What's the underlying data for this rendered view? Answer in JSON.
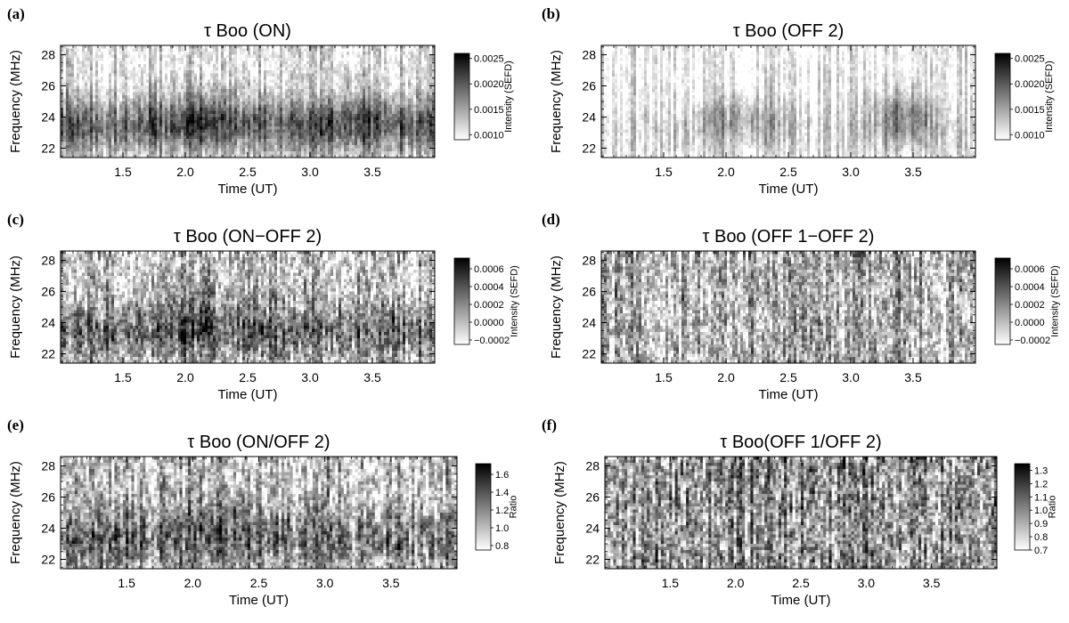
{
  "chart_data": [
    {
      "type": "heatmap",
      "panel_label": "(a)",
      "title": "τ Boo (ON)",
      "xlabel": "Time (UT)",
      "ylabel": "Frequency (MHz)",
      "xlim": [
        1.0,
        4.0
      ],
      "ylim": [
        21.4,
        28.6
      ],
      "xticks": [
        1.5,
        2.0,
        2.5,
        3.0,
        3.5
      ],
      "xticklabels": [
        "1.5",
        "2.0",
        "2.5",
        "3.0",
        "3.5"
      ],
      "yticks": [
        22,
        24,
        26,
        28
      ],
      "yticklabels": [
        "22",
        "24",
        "26",
        "28"
      ],
      "colorbar": {
        "label": "Intensity (SEFD)",
        "range": [
          0.0009,
          0.0026
        ],
        "ticks": [
          0.001,
          0.0015,
          0.002,
          0.0025
        ],
        "ticklabels": [
          "0.0010",
          "0.0015",
          "0.0020",
          "0.0025"
        ]
      },
      "colormap": "gray_reversed",
      "pattern": "on"
    },
    {
      "type": "heatmap",
      "panel_label": "(b)",
      "title": "τ Boo (OFF 2)",
      "xlabel": "Time (UT)",
      "ylabel": "Frequency (MHz)",
      "xlim": [
        1.0,
        4.0
      ],
      "ylim": [
        21.4,
        28.6
      ],
      "xticks": [
        1.5,
        2.0,
        2.5,
        3.0,
        3.5
      ],
      "xticklabels": [
        "1.5",
        "2.0",
        "2.5",
        "3.0",
        "3.5"
      ],
      "yticks": [
        22,
        24,
        26,
        28
      ],
      "yticklabels": [
        "22",
        "24",
        "26",
        "28"
      ],
      "colorbar": {
        "label": "Intensity (SEFD)",
        "range": [
          0.0009,
          0.0026
        ],
        "ticks": [
          0.001,
          0.0015,
          0.002,
          0.0025
        ],
        "ticklabels": [
          "0.0010",
          "0.0015",
          "0.0020",
          "0.0025"
        ]
      },
      "colormap": "gray_reversed",
      "pattern": "off"
    },
    {
      "type": "heatmap",
      "panel_label": "(c)",
      "title": "τ Boo (ON−OFF 2)",
      "xlabel": "Time (UT)",
      "ylabel": "Frequency (MHz)",
      "xlim": [
        1.0,
        4.0
      ],
      "ylim": [
        21.4,
        28.6
      ],
      "xticks": [
        1.5,
        2.0,
        2.5,
        3.0,
        3.5
      ],
      "xticklabels": [
        "1.5",
        "2.0",
        "2.5",
        "3.0",
        "3.5"
      ],
      "yticks": [
        22,
        24,
        26,
        28
      ],
      "yticklabels": [
        "22",
        "24",
        "26",
        "28"
      ],
      "colorbar": {
        "label": "Intensity (SEFD)",
        "range": [
          -0.00025,
          0.00072
        ],
        "ticks": [
          -0.0002,
          0.0,
          0.0002,
          0.0004,
          0.0006
        ],
        "ticklabels": [
          "−0.0002",
          "0.0000",
          "0.0002",
          "0.0004",
          "0.0006"
        ]
      },
      "colormap": "gray_reversed",
      "pattern": "diff"
    },
    {
      "type": "heatmap",
      "panel_label": "(d)",
      "title": "τ Boo (OFF 1−OFF 2)",
      "xlabel": "Time (UT)",
      "ylabel": "Frequency (MHz)",
      "xlim": [
        1.0,
        4.0
      ],
      "ylim": [
        21.4,
        28.6
      ],
      "xticks": [
        1.5,
        2.0,
        2.5,
        3.0,
        3.5
      ],
      "xticklabels": [
        "1.5",
        "2.0",
        "2.5",
        "3.0",
        "3.5"
      ],
      "yticks": [
        22,
        24,
        26,
        28
      ],
      "yticklabels": [
        "22",
        "24",
        "26",
        "28"
      ],
      "colorbar": {
        "label": "Intensity (SEFD)",
        "range": [
          -0.00025,
          0.00072
        ],
        "ticks": [
          -0.0002,
          0.0,
          0.0002,
          0.0004,
          0.0006
        ],
        "ticklabels": [
          "−0.0002",
          "0.0000",
          "0.0002",
          "0.0004",
          "0.0006"
        ]
      },
      "colormap": "gray_reversed",
      "pattern": "noise"
    },
    {
      "type": "heatmap",
      "panel_label": "(e)",
      "title": "τ Boo (ON/OFF 2)",
      "xlabel": "Time (UT)",
      "ylabel": "Frequency (MHz)",
      "xlim": [
        1.0,
        4.0
      ],
      "ylim": [
        21.4,
        28.6
      ],
      "xticks": [
        1.5,
        2.0,
        2.5,
        3.0,
        3.5
      ],
      "xticklabels": [
        "1.5",
        "2.0",
        "2.5",
        "3.0",
        "3.5"
      ],
      "yticks": [
        22,
        24,
        26,
        28
      ],
      "yticklabels": [
        "22",
        "24",
        "26",
        "28"
      ],
      "colorbar": {
        "label": "Ratio",
        "range": [
          0.75,
          1.72
        ],
        "ticks": [
          0.8,
          1.0,
          1.2,
          1.4,
          1.6
        ],
        "ticklabels": [
          "0.8",
          "1.0",
          "1.2",
          "1.4",
          "1.6"
        ]
      },
      "colormap": "gray_reversed",
      "pattern": "ratio"
    },
    {
      "type": "heatmap",
      "panel_label": "(f)",
      "title": "τ Boo(OFF 1/OFF 2)",
      "xlabel": "Time (UT)",
      "ylabel": "Frequency (MHz)",
      "xlim": [
        1.0,
        4.0
      ],
      "ylim": [
        21.4,
        28.6
      ],
      "xticks": [
        1.5,
        2.0,
        2.5,
        3.0,
        3.5
      ],
      "xticklabels": [
        "1.5",
        "2.0",
        "2.5",
        "3.0",
        "3.5"
      ],
      "yticks": [
        22,
        24,
        26,
        28
      ],
      "yticklabels": [
        "22",
        "24",
        "26",
        "28"
      ],
      "colorbar": {
        "label": "Ratio",
        "range": [
          0.7,
          1.35
        ],
        "ticks": [
          0.7,
          0.8,
          0.9,
          1.0,
          1.1,
          1.2,
          1.3
        ],
        "ticklabels": [
          "0.7",
          "0.8",
          "0.9",
          "1.0",
          "1.1",
          "1.2",
          "1.3"
        ]
      },
      "colormap": "gray_reversed",
      "pattern": "noise2"
    }
  ]
}
